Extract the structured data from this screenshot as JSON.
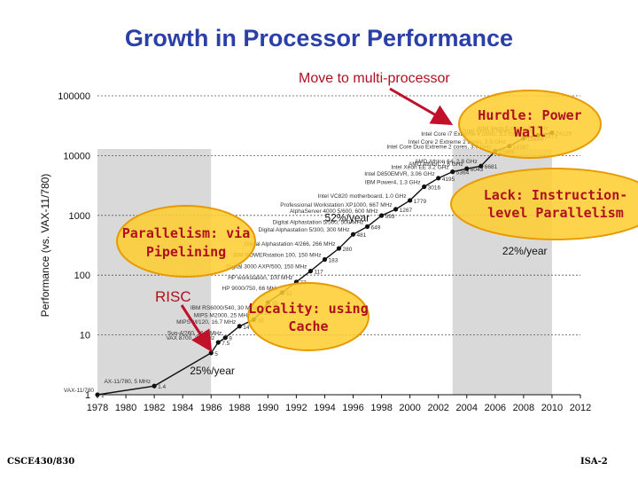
{
  "slide": {
    "title": "Growth in Processor Performance",
    "callout_multiprocessor": "Move to multi-processor",
    "footer_left": "CSCE430/830",
    "footer_right": "ISA-2"
  },
  "callouts": {
    "power_wall": [
      "Hurdle: Power",
      "Wall"
    ],
    "ilp": [
      "Lack: Instruction-",
      "level Parallelism"
    ],
    "pipelining": [
      "Parallelism: via",
      "Pipelining"
    ],
    "cache": [
      "Locality: using",
      "Cache"
    ],
    "risc": "RISC"
  },
  "colors": {
    "title": "#2b3fa8",
    "callout_text": "#b0101e",
    "bubble_fill": "#ffcc2e",
    "bubble_stroke": "#e79a00",
    "shade": "#d9d9d9",
    "line": "#111111",
    "arrow": "#c0102a"
  },
  "chart_data": {
    "type": "scatter",
    "title": "",
    "xlabel": "",
    "ylabel": "Performance (vs. VAX-11/780)",
    "yscale": "log",
    "xlim": [
      1978,
      2012
    ],
    "ylim": [
      1,
      100000
    ],
    "x_ticks": [
      1978,
      1980,
      1982,
      1984,
      1986,
      1988,
      1990,
      1992,
      1994,
      1996,
      1998,
      2000,
      2002,
      2004,
      2006,
      2008,
      2010,
      2012
    ],
    "y_ticks": [
      1,
      10,
      100,
      1000,
      10000,
      100000
    ],
    "y_tick_labels": [
      "1",
      "10",
      "100",
      "1000",
      "10000",
      "100000"
    ],
    "shaded_regions": [
      [
        1978,
        1986
      ],
      [
        2003,
        2010
      ]
    ],
    "growth_rates": [
      {
        "label": "25%/year",
        "x": 1984.5,
        "y": 2.2
      },
      {
        "label": "52%/year",
        "x": 1994,
        "y": 800
      },
      {
        "label": "22%/year",
        "x": 2006.5,
        "y": 220
      }
    ],
    "series": [
      {
        "name": "processors",
        "points": [
          {
            "x": 1978,
            "y": 1,
            "label": "VAX-11/780"
          },
          {
            "x": 1982,
            "y": 1.4,
            "label": "AX-11/780, 5 MHz"
          },
          {
            "x": 1986,
            "y": 5
          },
          {
            "x": 1986.5,
            "y": 7.5,
            "label": "VAX 8700, 22 MHz"
          },
          {
            "x": 1987,
            "y": 9,
            "label": "Sun-4/260, 16.7 MHz"
          },
          {
            "x": 1988,
            "y": 14,
            "label": "MIPS M/120, 16.7 MHz"
          },
          {
            "x": 1989,
            "y": 18,
            "label": "MIPS M2000, 25 MHz"
          },
          {
            "x": 1989.5,
            "y": 24,
            "label": "IBM RS6000/540, 30 MHz"
          },
          {
            "x": 1990,
            "y": 35
          },
          {
            "x": 1991,
            "y": 51,
            "label": "HP 9000/750, 66 MHz"
          },
          {
            "x": 1992,
            "y": 77,
            "label": "HP workstation, 100 MHz"
          },
          {
            "x": 1993,
            "y": 117,
            "label": "Digital 3000 AXP/500, 150 MHz"
          },
          {
            "x": 1994,
            "y": 183,
            "label": "IBM POWERstation 100, 150 MHz"
          },
          {
            "x": 1995,
            "y": 280,
            "label": "Digital Alphastation 4/266, 266 MHz"
          },
          {
            "x": 1996,
            "y": 481,
            "label": "Digital Alphastation 5/300, 300 MHz"
          },
          {
            "x": 1997,
            "y": 649,
            "label": "Digital Alphastation 5/500, 500 MHz"
          },
          {
            "x": 1998,
            "y": 993,
            "label": "AlphaServer 4000 5/600, 600 MHz"
          },
          {
            "x": 1999,
            "y": 1267,
            "label": "Professional Workstation XP1000, 667 MHz"
          },
          {
            "x": 2000,
            "y": 1779,
            "label": "Intel VC820 motherboard, 1.0 GHz"
          },
          {
            "x": 2001,
            "y": 3016,
            "label": "IBM Power4, 1.3 GHz"
          },
          {
            "x": 2002,
            "y": 4195,
            "label": "Intel D850EMVR, 3.06 GHz"
          },
          {
            "x": 2003,
            "y": 5364,
            "label": "Intel Xeon EE 3.2 GHz"
          },
          {
            "x": 2004,
            "y": 6043,
            "label": "AMD Athlon, 2.6 GHz"
          },
          {
            "x": 2005,
            "y": 6681,
            "label": "AMD Athlon 64, 2.8 GHz"
          },
          {
            "x": 2006,
            "y": 11865,
            "label": "Intel Core Duo Extreme 2 cores, 3.0 GHz"
          },
          {
            "x": 2007,
            "y": 14387,
            "label": "Intel Core 2 Extreme 2 cores, 2.9 GHz"
          },
          {
            "x": 2008,
            "y": 19484,
            "label": "Intel Core i7 Extreme 4 cores, 3.2 GHz"
          },
          {
            "x": 2009,
            "y": 21871,
            "label": "Intel Xeon 4 cores, 3.3 GHz"
          },
          {
            "x": 2010,
            "y": 24129,
            "label": "Intel Xeon 6 cores, 3.3 GHz"
          }
        ]
      }
    ]
  }
}
